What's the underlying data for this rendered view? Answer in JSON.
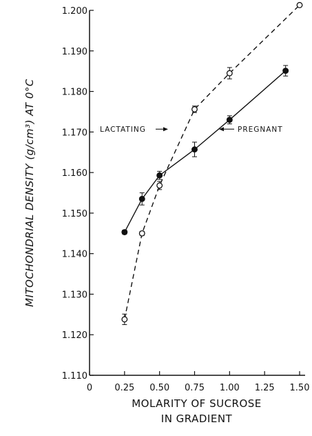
{
  "chart_data": {
    "type": "line",
    "xlabel": "MOLARITY OF SUCROSE",
    "xlabel_line2": "IN GRADIENT",
    "ylabel": "MITOCHONDRIAL DENSITY (g/cm³) AT 0°C",
    "xlim": [
      0,
      1.5
    ],
    "ylim": [
      1.11,
      1.2
    ],
    "x_ticks": [
      0,
      0.25,
      0.5,
      0.75,
      1.0,
      1.25,
      1.5
    ],
    "x_tick_labels": [
      "0",
      "0.25",
      "0.50",
      "0.75",
      "1.00",
      "1.25",
      "1.50"
    ],
    "y_ticks": [
      1.11,
      1.12,
      1.13,
      1.14,
      1.15,
      1.16,
      1.17,
      1.18,
      1.19,
      1.2
    ],
    "y_tick_labels": [
      "1.110",
      "1.120",
      "1.130",
      "1.140",
      "1.150",
      "1.160",
      "1.170",
      "1.180",
      "1.190",
      "1.200"
    ],
    "grid": false,
    "series": [
      {
        "name": "PREGNANT",
        "marker": "filled-circle",
        "line_style": "solid",
        "x": [
          0.25,
          0.375,
          0.5,
          0.75,
          1.0,
          1.4
        ],
        "y": [
          1.1453,
          1.1535,
          1.1593,
          1.1657,
          1.173,
          1.1851
        ],
        "err": [
          0.0005,
          0.0015,
          0.001,
          0.0018,
          0.001,
          0.0013
        ]
      },
      {
        "name": "LACTATING",
        "marker": "open-circle",
        "line_style": "dashed",
        "x": [
          0.25,
          0.375,
          0.5,
          0.75,
          1.0,
          1.5
        ],
        "y": [
          1.1238,
          1.145,
          1.1568,
          1.1756,
          1.1845,
          1.2013
        ],
        "err": [
          0.0013,
          0.0005,
          0.001,
          0.0008,
          0.0014,
          0.0004
        ]
      }
    ],
    "annotations": [
      {
        "text": "LACTATING",
        "arrow": "right",
        "series": "LACTATING"
      },
      {
        "text": "PREGNANT",
        "arrow": "left",
        "series": "PREGNANT"
      }
    ]
  }
}
